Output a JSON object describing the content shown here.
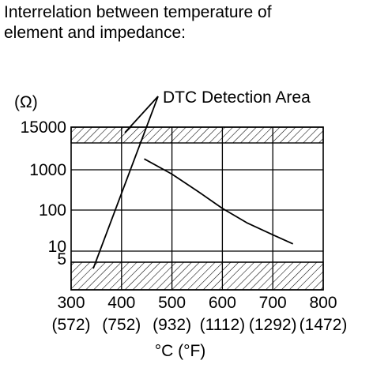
{
  "title_lines": [
    "Interrelation between temperature of",
    "element and impedance:"
  ],
  "chart_data": {
    "type": "line",
    "title": "Interrelation between temperature of element and impedance:",
    "ylabel": "(Ω)",
    "xlabel": "°C (°F)",
    "x_ticks": [
      {
        "c": "300",
        "f": "(572)"
      },
      {
        "c": "400",
        "f": "(752)"
      },
      {
        "c": "500",
        "f": "(932)"
      },
      {
        "c": "600",
        "f": "(1112)"
      },
      {
        "c": "700",
        "f": "(1292)"
      },
      {
        "c": "800",
        "f": "(1472)"
      }
    ],
    "y_ticks": [
      "15000",
      "1000",
      "100",
      "10",
      "5"
    ],
    "xlim": [
      300,
      800
    ],
    "y_scale": "log",
    "grid": true,
    "series": [
      {
        "x": [
          445,
          500,
          550,
          600,
          650,
          700,
          740
        ],
        "y": [
          2000,
          780,
          300,
          110,
          48,
          25,
          15
        ]
      }
    ],
    "detection_areas": [
      {
        "y_range": [
          5500,
          15000
        ]
      },
      {
        "y_range": [
          1,
          5
        ]
      }
    ],
    "annotation": "DTC Detection Area"
  }
}
